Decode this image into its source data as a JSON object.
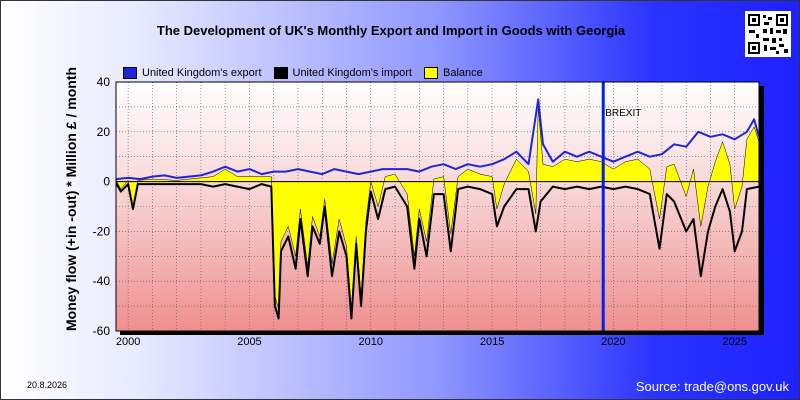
{
  "title": "The Development of UK's Monthly Export and Import in Goods with Georgia",
  "date_stamp": "20.8.2026",
  "source": "Source: trade@ons.gov.uk",
  "legend": {
    "export": "United Kingdom's export",
    "import": "United Kingdom's import",
    "balance": "Balance"
  },
  "colors": {
    "export": "#1f25d6",
    "import": "#000000",
    "balance": "#ffff00",
    "marker": "#0022ee"
  },
  "chart_data": {
    "type": "line",
    "title": "The Development of UK's Monthly Export and Import in Goods with Georgia",
    "ylabel": "Money flow (+in -out) * Million £ / month",
    "xlabel": "",
    "xlim": [
      1999.5,
      2026.0
    ],
    "ylim": [
      -60,
      40
    ],
    "x_ticks": [
      2000,
      2005,
      2010,
      2015,
      2020,
      2025
    ],
    "y_ticks": [
      -60,
      -40,
      -20,
      0,
      20,
      40
    ],
    "grid": true,
    "legend_position": "top-left",
    "marker": {
      "x": 2019.58,
      "label": "BREXIT"
    },
    "series": [
      {
        "name": "United Kingdom's export",
        "points": [
          [
            1999.5,
            1
          ],
          [
            2000,
            1.5
          ],
          [
            2000.5,
            1
          ],
          [
            2001,
            2
          ],
          [
            2001.5,
            2.5
          ],
          [
            2002,
            1.5
          ],
          [
            2002.5,
            2
          ],
          [
            2003,
            2.5
          ],
          [
            2003.5,
            4
          ],
          [
            2004,
            6
          ],
          [
            2004.5,
            4
          ],
          [
            2005,
            5
          ],
          [
            2005.5,
            3
          ],
          [
            2006,
            4
          ],
          [
            2006.5,
            4
          ],
          [
            2007,
            5
          ],
          [
            2007.5,
            4
          ],
          [
            2008,
            3
          ],
          [
            2008.5,
            5
          ],
          [
            2009,
            4
          ],
          [
            2009.5,
            3
          ],
          [
            2010,
            4
          ],
          [
            2010.5,
            5
          ],
          [
            2011,
            5
          ],
          [
            2011.5,
            5
          ],
          [
            2012,
            4
          ],
          [
            2012.5,
            6
          ],
          [
            2013,
            7
          ],
          [
            2013.5,
            5
          ],
          [
            2014,
            7
          ],
          [
            2014.5,
            6
          ],
          [
            2015,
            7
          ],
          [
            2015.5,
            9
          ],
          [
            2016,
            12
          ],
          [
            2016.5,
            7
          ],
          [
            2016.9,
            33
          ],
          [
            2017.1,
            15
          ],
          [
            2017.5,
            8
          ],
          [
            2018,
            12
          ],
          [
            2018.5,
            10
          ],
          [
            2019,
            12
          ],
          [
            2019.5,
            10
          ],
          [
            2020,
            8
          ],
          [
            2020.5,
            10
          ],
          [
            2021,
            12
          ],
          [
            2021.5,
            10
          ],
          [
            2022,
            11
          ],
          [
            2022.5,
            15
          ],
          [
            2023,
            14
          ],
          [
            2023.5,
            20
          ],
          [
            2024,
            18
          ],
          [
            2024.5,
            19
          ],
          [
            2025,
            17
          ],
          [
            2025.5,
            20
          ],
          [
            2025.8,
            25
          ],
          [
            2026,
            18
          ]
        ]
      },
      {
        "name": "United Kingdom's import",
        "points": [
          [
            1999.5,
            -0.5
          ],
          [
            1999.7,
            -4
          ],
          [
            2000,
            -1
          ],
          [
            2000.2,
            -11
          ],
          [
            2000.4,
            -1
          ],
          [
            2001,
            -1
          ],
          [
            2002,
            -1
          ],
          [
            2003,
            -1
          ],
          [
            2003.5,
            -2
          ],
          [
            2004,
            -1
          ],
          [
            2004.5,
            -2
          ],
          [
            2005,
            -3
          ],
          [
            2005.5,
            -1
          ],
          [
            2005.9,
            -2
          ],
          [
            2006.05,
            -50
          ],
          [
            2006.2,
            -55
          ],
          [
            2006.3,
            -28
          ],
          [
            2006.6,
            -22
          ],
          [
            2006.9,
            -35
          ],
          [
            2007.1,
            -15
          ],
          [
            2007.4,
            -38
          ],
          [
            2007.6,
            -18
          ],
          [
            2007.9,
            -25
          ],
          [
            2008.1,
            -10
          ],
          [
            2008.4,
            -38
          ],
          [
            2008.7,
            -20
          ],
          [
            2009,
            -30
          ],
          [
            2009.2,
            -55
          ],
          [
            2009.4,
            -25
          ],
          [
            2009.6,
            -50
          ],
          [
            2009.8,
            -20
          ],
          [
            2010,
            -4
          ],
          [
            2010.3,
            -15
          ],
          [
            2010.6,
            -3
          ],
          [
            2011,
            -2
          ],
          [
            2011.5,
            -10
          ],
          [
            2011.8,
            -35
          ],
          [
            2012,
            -15
          ],
          [
            2012.3,
            -30
          ],
          [
            2012.6,
            -5
          ],
          [
            2013,
            -5
          ],
          [
            2013.3,
            -28
          ],
          [
            2013.6,
            -3
          ],
          [
            2014,
            -2
          ],
          [
            2014.5,
            -3
          ],
          [
            2015,
            -5
          ],
          [
            2015.2,
            -18
          ],
          [
            2015.5,
            -10
          ],
          [
            2016,
            -3
          ],
          [
            2016.5,
            -3
          ],
          [
            2016.8,
            -20
          ],
          [
            2017,
            -8
          ],
          [
            2017.5,
            -2
          ],
          [
            2018,
            -3
          ],
          [
            2018.5,
            -2
          ],
          [
            2019,
            -3
          ],
          [
            2019.5,
            -2
          ],
          [
            2020,
            -3
          ],
          [
            2020.5,
            -2
          ],
          [
            2021,
            -3
          ],
          [
            2021.5,
            -5
          ],
          [
            2021.9,
            -27
          ],
          [
            2022.2,
            -5
          ],
          [
            2022.5,
            -8
          ],
          [
            2023,
            -20
          ],
          [
            2023.3,
            -15
          ],
          [
            2023.6,
            -38
          ],
          [
            2023.9,
            -20
          ],
          [
            2024.2,
            -10
          ],
          [
            2024.5,
            -3
          ],
          [
            2024.8,
            -12
          ],
          [
            2025,
            -28
          ],
          [
            2025.3,
            -20
          ],
          [
            2025.5,
            -3
          ],
          [
            2026,
            -2
          ]
        ]
      },
      {
        "name": "Balance",
        "points": [
          [
            1999.5,
            0.5
          ],
          [
            1999.7,
            -3
          ],
          [
            2000,
            0.5
          ],
          [
            2000.2,
            -10
          ],
          [
            2000.4,
            0.5
          ],
          [
            2001,
            1
          ],
          [
            2002,
            0.5
          ],
          [
            2003,
            1.5
          ],
          [
            2003.5,
            2
          ],
          [
            2004,
            5
          ],
          [
            2004.5,
            2
          ],
          [
            2005,
            2
          ],
          [
            2005.5,
            2
          ],
          [
            2005.9,
            2
          ],
          [
            2006.05,
            -46
          ],
          [
            2006.2,
            -51
          ],
          [
            2006.3,
            -24
          ],
          [
            2006.6,
            -18
          ],
          [
            2006.9,
            -30
          ],
          [
            2007.1,
            -11
          ],
          [
            2007.4,
            -34
          ],
          [
            2007.6,
            -14
          ],
          [
            2007.9,
            -22
          ],
          [
            2008.1,
            -7
          ],
          [
            2008.4,
            -33
          ],
          [
            2008.7,
            -15
          ],
          [
            2009,
            -26
          ],
          [
            2009.2,
            -51
          ],
          [
            2009.4,
            -22
          ],
          [
            2009.6,
            -46
          ],
          [
            2009.8,
            -16
          ],
          [
            2010,
            0
          ],
          [
            2010.3,
            -10
          ],
          [
            2010.6,
            2
          ],
          [
            2011,
            3
          ],
          [
            2011.5,
            -5
          ],
          [
            2011.8,
            -30
          ],
          [
            2012,
            -11
          ],
          [
            2012.3,
            -24
          ],
          [
            2012.6,
            1
          ],
          [
            2013,
            2
          ],
          [
            2013.3,
            -21
          ],
          [
            2013.6,
            2
          ],
          [
            2014,
            5
          ],
          [
            2014.5,
            3
          ],
          [
            2015,
            2
          ],
          [
            2015.2,
            -11
          ],
          [
            2015.5,
            -1
          ],
          [
            2016,
            9
          ],
          [
            2016.5,
            4
          ],
          [
            2016.8,
            -13
          ],
          [
            2016.9,
            30
          ],
          [
            2017.1,
            7
          ],
          [
            2017.5,
            6
          ],
          [
            2018,
            9
          ],
          [
            2018.5,
            8
          ],
          [
            2019,
            9
          ],
          [
            2019.5,
            8
          ],
          [
            2020,
            5
          ],
          [
            2020.5,
            8
          ],
          [
            2021,
            9
          ],
          [
            2021.5,
            5
          ],
          [
            2021.9,
            -15
          ],
          [
            2022.2,
            6
          ],
          [
            2022.5,
            7
          ],
          [
            2023,
            -6
          ],
          [
            2023.3,
            5
          ],
          [
            2023.6,
            -18
          ],
          [
            2023.9,
            -2
          ],
          [
            2024.2,
            8
          ],
          [
            2024.5,
            16
          ],
          [
            2024.8,
            7
          ],
          [
            2025,
            -11
          ],
          [
            2025.3,
            -2
          ],
          [
            2025.5,
            17
          ],
          [
            2025.8,
            22
          ],
          [
            2026,
            16
          ]
        ]
      }
    ]
  }
}
